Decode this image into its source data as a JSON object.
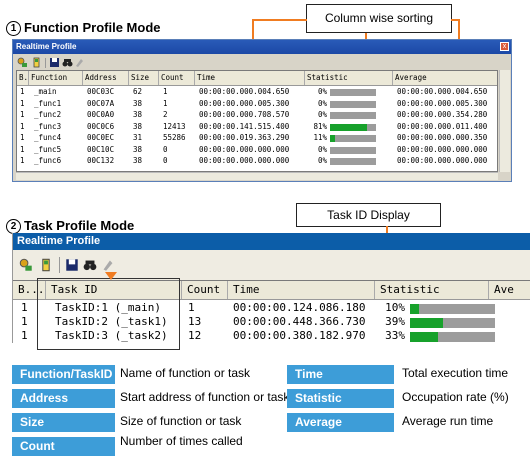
{
  "section1": {
    "number": "1",
    "title": "Function Profile Mode"
  },
  "section2": {
    "number": "2",
    "title": "Task Profile Mode"
  },
  "callout1": {
    "text": "Column wise sorting"
  },
  "callout2": {
    "text": "Task ID Display"
  },
  "window1": {
    "title": "Realtime Profile",
    "close_glyph": "x",
    "columns": [
      "B..",
      "Function",
      "Address",
      "Size",
      "Count",
      "Time",
      "Statistic",
      "Average"
    ],
    "rows": [
      {
        "b": "1",
        "function": "_main",
        "address": "00C03C",
        "size": "62",
        "count": "1",
        "time": "00:00:00.000.004.650",
        "stat_label": "0%",
        "stat": 0.0,
        "average": "00:00:00.000.004.650"
      },
      {
        "b": "1",
        "function": "_func1",
        "address": "00C07A",
        "size": "38",
        "count": "1",
        "time": "00:00:00.000.005.300",
        "stat_label": "0%",
        "stat": 0.0,
        "average": "00:00:00.000.005.300"
      },
      {
        "b": "1",
        "function": "_func2",
        "address": "00C0A0",
        "size": "38",
        "count": "2",
        "time": "00:00:00.000.708.570",
        "stat_label": "0%",
        "stat": 0.0,
        "average": "00:00:00.000.354.280"
      },
      {
        "b": "1",
        "function": "_func3",
        "address": "00C0C6",
        "size": "38",
        "count": "12413",
        "time": "00:00:00.141.515.400",
        "stat_label": "81%",
        "stat": 0.81,
        "average": "00:00:00.000.011.400"
      },
      {
        "b": "1",
        "function": "_func4",
        "address": "00C0EC",
        "size": "31",
        "count": "55286",
        "time": "00:00:00.019.363.290",
        "stat_label": "11%",
        "stat": 0.11,
        "average": "00:00:00.000.000.350"
      },
      {
        "b": "1",
        "function": "_func5",
        "address": "00C10C",
        "size": "38",
        "count": "0",
        "time": "00:00:00.000.000.000",
        "stat_label": "0%",
        "stat": 0.0,
        "average": "00:00:00.000.000.000"
      },
      {
        "b": "1",
        "function": "_func6",
        "address": "00C132",
        "size": "38",
        "count": "0",
        "time": "00:00:00.000.000.000",
        "stat_label": "0%",
        "stat": 0.0,
        "average": "00:00:00.000.000.000"
      }
    ]
  },
  "window2": {
    "title": "Realtime Profile",
    "columns": [
      "B...",
      "Task ID",
      "Count",
      "Time",
      "Statistic",
      "Ave"
    ],
    "rows": [
      {
        "b": "1",
        "task": "TaskID:1 (_main)",
        "count": "1",
        "time": "00:00:00.124.086.180",
        "stat_label": "10%",
        "stat": 0.1
      },
      {
        "b": "1",
        "task": "TaskID:2 (_task1)",
        "count": "13",
        "time": "00:00:00.448.366.730",
        "stat_label": "39%",
        "stat": 0.39
      },
      {
        "b": "1",
        "task": "TaskID:3 (_task2)",
        "count": "12",
        "time": "00:00:00.380.182.970",
        "stat_label": "33%",
        "stat": 0.33
      }
    ]
  },
  "legend": [
    {
      "label": "Function/TaskID",
      "desc": "Name of function or task"
    },
    {
      "label": "Address",
      "desc": "Start address of function or task"
    },
    {
      "label": "Size",
      "desc": "Size of function or task"
    },
    {
      "label": "Count",
      "desc": "Number of times called"
    },
    {
      "label": "Time",
      "desc": "Total execution time"
    },
    {
      "label": "Statistic",
      "desc": "Occupation rate (%)"
    },
    {
      "label": "Average",
      "desc": "Average run time"
    }
  ],
  "colors": {
    "accent_blue": "#3d9dd8",
    "bar_fill": "#17a12b",
    "bar_bg": "#9c9c9c",
    "callout_line": "#f07c21"
  },
  "icons": [
    "profile-settings-icon",
    "toggle-icon",
    "save-icon",
    "find-icon",
    "clear-icon"
  ]
}
